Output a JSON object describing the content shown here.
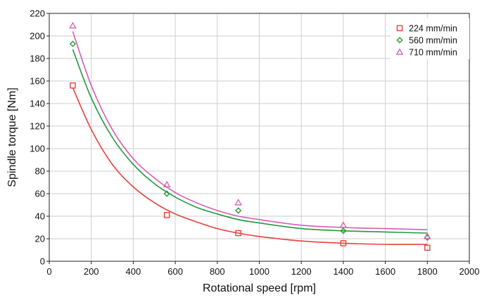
{
  "chart_data": {
    "type": "scatter",
    "xlabel": "Rotational speed [rpm]",
    "ylabel": "Spindle torque [Nm]",
    "xlim": [
      0,
      2000
    ],
    "ylim": [
      0,
      220
    ],
    "xticks": [
      "0",
      "200",
      "400",
      "600",
      "800",
      "1000",
      "1200",
      "1400",
      "1600",
      "1800",
      "2000"
    ],
    "yticks": [
      "0",
      "20",
      "40",
      "60",
      "80",
      "100",
      "120",
      "140",
      "160",
      "180",
      "200",
      "220"
    ],
    "grid": true,
    "legend_position": "top-right",
    "series": [
      {
        "name": "224 mm/min",
        "marker": "square",
        "color": "#e8413c",
        "x": [
          112,
          560,
          900,
          1400,
          1800
        ],
        "y": [
          156,
          41,
          25,
          16,
          12
        ],
        "fit": {
          "x": [
            112,
            200,
            300,
            400,
            500,
            600,
            700,
            800,
            900,
            1000,
            1200,
            1400,
            1600,
            1800
          ],
          "y": [
            154,
            117,
            86,
            66,
            52,
            42,
            35,
            29,
            25,
            22,
            18,
            16,
            15,
            15
          ]
        }
      },
      {
        "name": "560 mm/min",
        "marker": "diamond",
        "color": "#1f9c3a",
        "x": [
          112,
          560,
          900,
          1400,
          1800
        ],
        "y": [
          193,
          60,
          45,
          27,
          21
        ],
        "fit": {
          "x": [
            112,
            200,
            300,
            400,
            500,
            600,
            700,
            800,
            900,
            1000,
            1200,
            1400,
            1600,
            1800
          ],
          "y": [
            188,
            145,
            110,
            86,
            69,
            57,
            48,
            42,
            37,
            34,
            29,
            27,
            26,
            25
          ]
        }
      },
      {
        "name": "710 mm/min",
        "marker": "triangle",
        "color": "#d65ab8",
        "x": [
          112,
          560,
          900,
          1400,
          1800
        ],
        "y": [
          209,
          68,
          52,
          32,
          22
        ],
        "fit": {
          "x": [
            112,
            200,
            300,
            400,
            500,
            600,
            700,
            800,
            900,
            1000,
            1200,
            1400,
            1600,
            1800
          ],
          "y": [
            204,
            156,
            117,
            91,
            74,
            61,
            52,
            45,
            40,
            37,
            32,
            30,
            29,
            28
          ]
        }
      }
    ]
  }
}
